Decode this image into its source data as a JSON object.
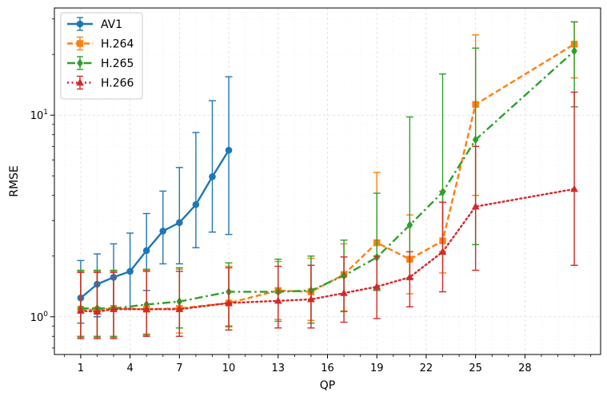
{
  "chart_data": {
    "type": "line",
    "title": "",
    "xlabel": "QP",
    "ylabel": "RMSE",
    "yscale": "log",
    "xlim": [
      -0.6,
      32.6
    ],
    "ylim": [
      0.65,
      34
    ],
    "grid": true,
    "legend_position": "top-left",
    "x_ticks": [
      1,
      4,
      7,
      10,
      13,
      16,
      19,
      22,
      25,
      28
    ],
    "x_tick_labels": [
      "1",
      "4",
      "7",
      "10",
      "13",
      "16",
      "19",
      "22",
      "25",
      "28"
    ],
    "y_ticks": [
      1,
      10
    ],
    "y_tick_labels": [
      "10^0",
      "10^1"
    ],
    "series": [
      {
        "name": "AV1",
        "color": "#1f77b4",
        "marker": "circle",
        "linestyle": "solid",
        "points": [
          {
            "x": 1,
            "y": 1.24,
            "lo": 0.93,
            "hi": 1.9
          },
          {
            "x": 2,
            "y": 1.45,
            "lo": 1.0,
            "hi": 2.05
          },
          {
            "x": 3,
            "y": 1.57,
            "lo": 1.08,
            "hi": 2.3
          },
          {
            "x": 4,
            "y": 1.68,
            "lo": 1.1,
            "hi": 2.6
          },
          {
            "x": 5,
            "y": 2.13,
            "lo": 1.35,
            "hi": 3.25
          },
          {
            "x": 6,
            "y": 2.66,
            "lo": 1.83,
            "hi": 4.2
          },
          {
            "x": 7,
            "y": 2.93,
            "lo": 1.83,
            "hi": 5.5
          },
          {
            "x": 8,
            "y": 3.6,
            "lo": 2.2,
            "hi": 8.2
          },
          {
            "x": 9,
            "y": 4.95,
            "lo": 2.63,
            "hi": 11.8
          },
          {
            "x": 10,
            "y": 6.7,
            "lo": 2.56,
            "hi": 15.5
          }
        ]
      },
      {
        "name": "H.264",
        "color": "#ff7f0e",
        "marker": "square",
        "linestyle": "dashed",
        "points": [
          {
            "x": 1,
            "y": 1.09,
            "lo": 0.79,
            "hi": 1.68
          },
          {
            "x": 2,
            "y": 1.08,
            "lo": 0.79,
            "hi": 1.68
          },
          {
            "x": 3,
            "y": 1.1,
            "lo": 0.79,
            "hi": 1.68
          },
          {
            "x": 5,
            "y": 1.09,
            "lo": 0.81,
            "hi": 1.7
          },
          {
            "x": 7,
            "y": 1.1,
            "lo": 0.83,
            "hi": 1.72
          },
          {
            "x": 10,
            "y": 1.17,
            "lo": 0.89,
            "hi": 1.78
          },
          {
            "x": 13,
            "y": 1.35,
            "lo": 0.97,
            "hi": 1.88
          },
          {
            "x": 15,
            "y": 1.33,
            "lo": 0.96,
            "hi": 1.95
          },
          {
            "x": 17,
            "y": 1.62,
            "lo": 1.07,
            "hi": 2.3
          },
          {
            "x": 19,
            "y": 2.33,
            "lo": 1.36,
            "hi": 5.2
          },
          {
            "x": 21,
            "y": 1.93,
            "lo": 1.3,
            "hi": 3.2
          },
          {
            "x": 23,
            "y": 2.38,
            "lo": 1.65,
            "hi": 4.2
          },
          {
            "x": 25,
            "y": 11.3,
            "lo": 4.0,
            "hi": 25.0
          },
          {
            "x": 31,
            "y": 22.5,
            "lo": 15.3,
            "hi": 29.0
          }
        ]
      },
      {
        "name": "H.265",
        "color": "#2ca02c",
        "marker": "diamond",
        "linestyle": "dashdot",
        "points": [
          {
            "x": 1,
            "y": 1.1,
            "lo": 0.8,
            "hi": 1.7
          },
          {
            "x": 2,
            "y": 1.1,
            "lo": 0.8,
            "hi": 1.7
          },
          {
            "x": 3,
            "y": 1.1,
            "lo": 0.8,
            "hi": 1.7
          },
          {
            "x": 5,
            "y": 1.15,
            "lo": 0.82,
            "hi": 1.72
          },
          {
            "x": 7,
            "y": 1.19,
            "lo": 0.88,
            "hi": 1.75
          },
          {
            "x": 10,
            "y": 1.33,
            "lo": 0.9,
            "hi": 1.85
          },
          {
            "x": 13,
            "y": 1.33,
            "lo": 0.95,
            "hi": 1.93
          },
          {
            "x": 15,
            "y": 1.35,
            "lo": 0.93,
            "hi": 2.0
          },
          {
            "x": 17,
            "y": 1.6,
            "lo": 1.06,
            "hi": 2.4
          },
          {
            "x": 19,
            "y": 1.97,
            "lo": 1.35,
            "hi": 4.1
          },
          {
            "x": 21,
            "y": 2.85,
            "lo": 1.55,
            "hi": 9.8
          },
          {
            "x": 23,
            "y": 4.15,
            "lo": 2.1,
            "hi": 16.0
          },
          {
            "x": 25,
            "y": 7.55,
            "lo": 2.28,
            "hi": 21.5
          },
          {
            "x": 31,
            "y": 20.8,
            "lo": 11.0,
            "hi": 29.0
          }
        ]
      },
      {
        "name": "H.266",
        "color": "#d62728",
        "marker": "triangle",
        "linestyle": "dotted",
        "points": [
          {
            "x": 1,
            "y": 1.07,
            "lo": 0.78,
            "hi": 1.66
          },
          {
            "x": 2,
            "y": 1.06,
            "lo": 0.78,
            "hi": 1.66
          },
          {
            "x": 3,
            "y": 1.09,
            "lo": 0.78,
            "hi": 1.66
          },
          {
            "x": 5,
            "y": 1.09,
            "lo": 0.8,
            "hi": 1.68
          },
          {
            "x": 7,
            "y": 1.09,
            "lo": 0.8,
            "hi": 1.68
          },
          {
            "x": 10,
            "y": 1.17,
            "lo": 0.86,
            "hi": 1.75
          },
          {
            "x": 13,
            "y": 1.2,
            "lo": 0.88,
            "hi": 1.78
          },
          {
            "x": 15,
            "y": 1.22,
            "lo": 0.88,
            "hi": 1.8
          },
          {
            "x": 17,
            "y": 1.31,
            "lo": 0.94,
            "hi": 1.98
          },
          {
            "x": 19,
            "y": 1.41,
            "lo": 0.98,
            "hi": 2.0
          },
          {
            "x": 21,
            "y": 1.57,
            "lo": 1.12,
            "hi": 2.1
          },
          {
            "x": 23,
            "y": 2.1,
            "lo": 1.33,
            "hi": 3.7
          },
          {
            "x": 25,
            "y": 3.52,
            "lo": 1.7,
            "hi": 7.0
          },
          {
            "x": 31,
            "y": 4.3,
            "lo": 1.8,
            "hi": 13.0
          }
        ]
      }
    ]
  }
}
